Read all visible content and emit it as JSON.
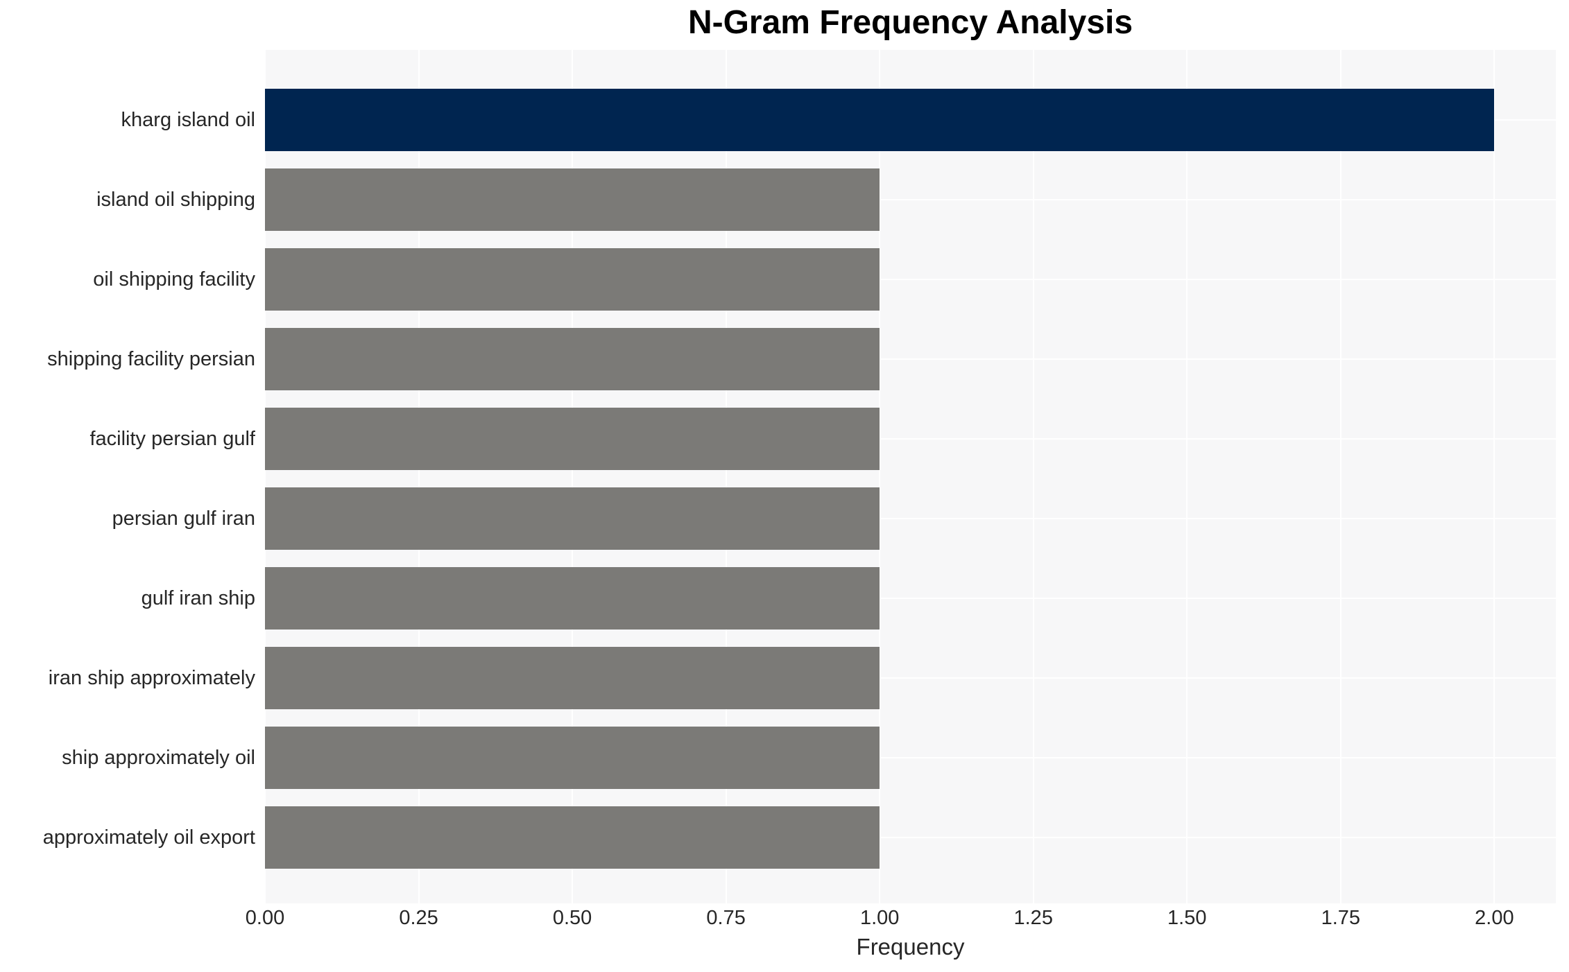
{
  "chart_data": {
    "type": "bar",
    "orientation": "horizontal",
    "title": "N-Gram Frequency Analysis",
    "xlabel": "Frequency",
    "ylabel": "",
    "categories": [
      "kharg island oil",
      "island oil shipping",
      "oil shipping facility",
      "shipping facility persian",
      "facility persian gulf",
      "persian gulf iran",
      "gulf iran ship",
      "iran ship approximately",
      "ship approximately oil",
      "approximately oil export"
    ],
    "values": [
      2.0,
      1.0,
      1.0,
      1.0,
      1.0,
      1.0,
      1.0,
      1.0,
      1.0,
      1.0
    ],
    "x_ticks": [
      "0.00",
      "0.25",
      "0.50",
      "0.75",
      "1.00",
      "1.25",
      "1.50",
      "1.75",
      "2.00"
    ],
    "xlim": [
      0,
      2.1
    ],
    "grid": true,
    "legend_position": "none",
    "highlight_category": "kharg island oil",
    "colors": {
      "highlight_bar": "#002550",
      "default_bar": "#7b7a77",
      "plot_background": "#f7f7f8",
      "gridline": "#ffffff",
      "tick_text": "#262626",
      "title_text": "#000000"
    }
  }
}
